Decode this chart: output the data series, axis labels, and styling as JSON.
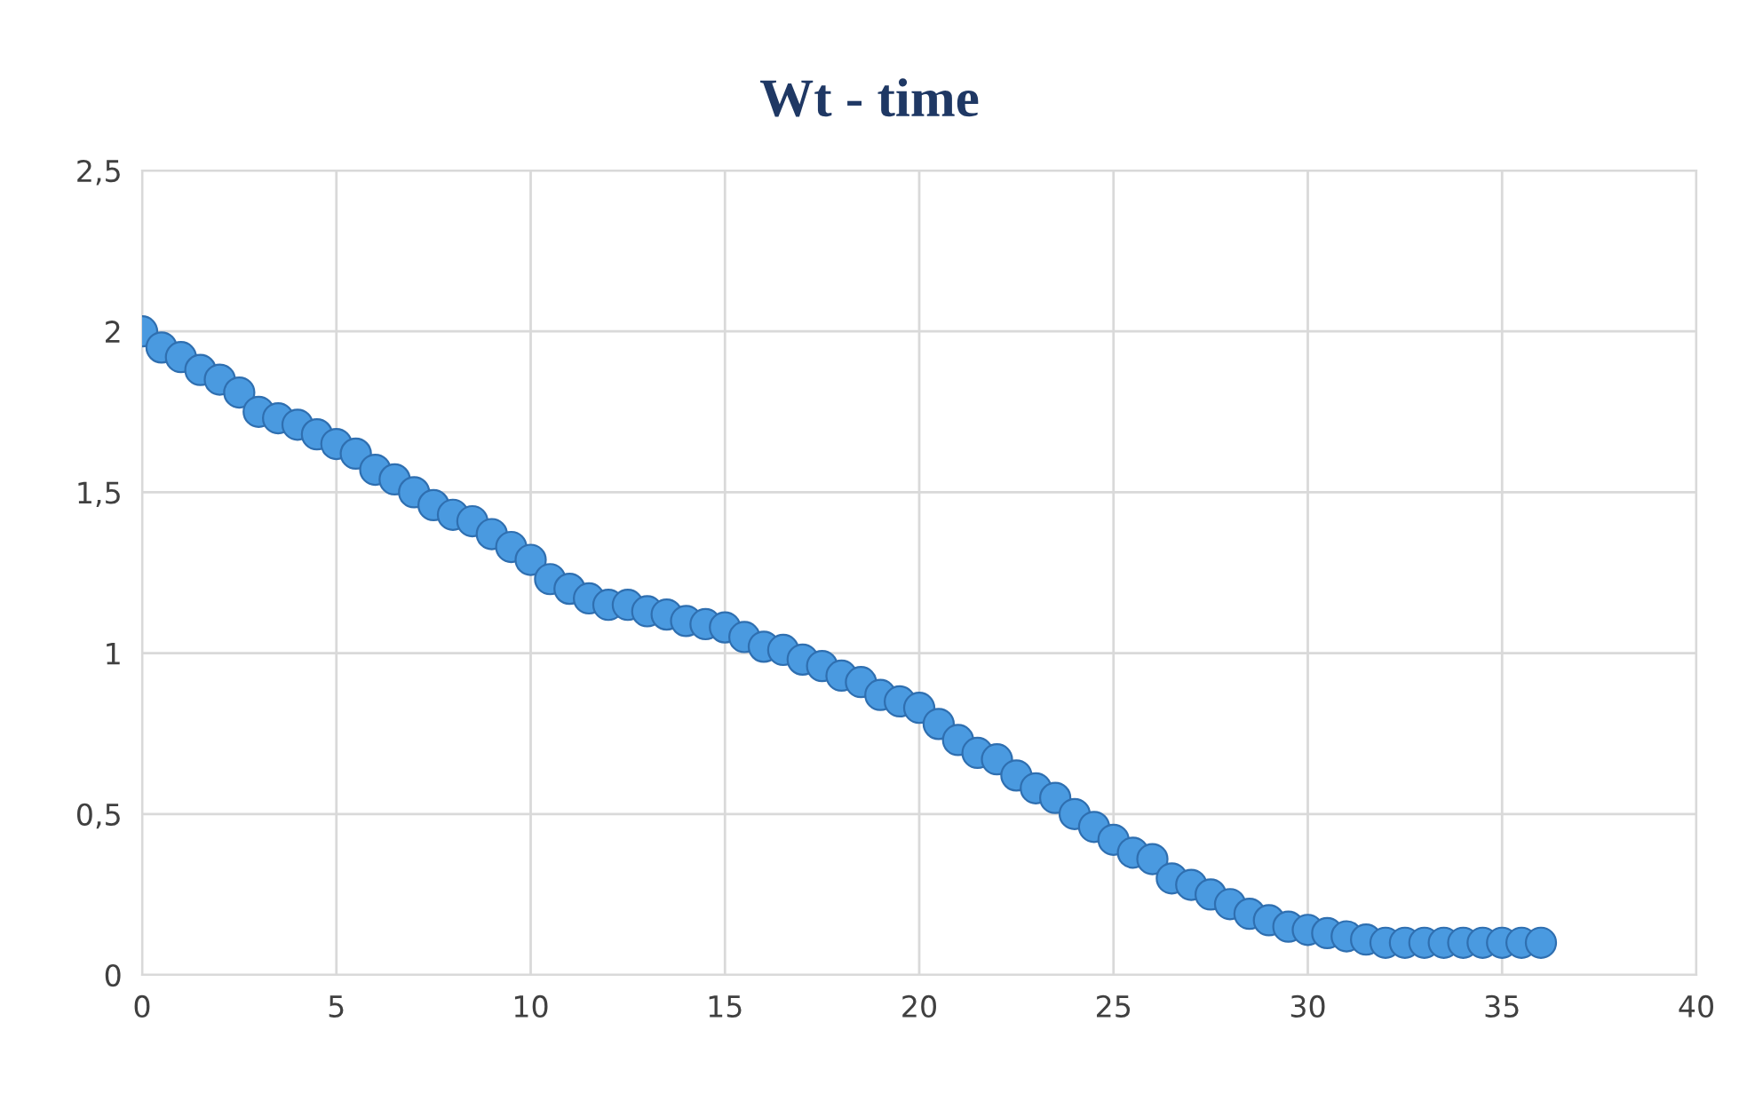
{
  "chart_data": {
    "type": "scatter",
    "title": "Wt - time",
    "x": [
      0,
      0.5,
      1,
      1.5,
      2,
      2.5,
      3,
      3.5,
      4,
      4.5,
      5,
      5.5,
      6,
      6.5,
      7,
      7.5,
      8,
      8.5,
      9,
      9.5,
      10,
      10.5,
      11,
      11.5,
      12,
      12.5,
      13,
      13.5,
      14,
      14.5,
      15,
      15.5,
      16,
      16.5,
      17,
      17.5,
      18,
      18.5,
      19,
      19.5,
      20,
      20.5,
      21,
      21.5,
      22,
      22.5,
      23,
      23.5,
      24,
      24.5,
      25,
      25.5,
      26,
      26.5,
      27,
      27.5,
      28,
      28.5,
      29,
      29.5,
      30,
      30.5,
      31,
      31.5,
      32,
      32.5,
      33,
      33.5,
      34,
      34.5,
      35,
      35.5,
      36
    ],
    "series": [
      {
        "color": "#4a9ae0",
        "values": [
          2.0,
          1.95,
          1.92,
          1.88,
          1.85,
          1.81,
          1.75,
          1.73,
          1.71,
          1.68,
          1.65,
          1.62,
          1.57,
          1.54,
          1.5,
          1.46,
          1.43,
          1.41,
          1.37,
          1.33,
          1.29,
          1.23,
          1.2,
          1.17,
          1.15,
          1.15,
          1.13,
          1.12,
          1.1,
          1.09,
          1.08,
          1.05,
          1.02,
          1.01,
          0.98,
          0.96,
          0.93,
          0.91,
          0.87,
          0.85,
          0.83,
          0.78,
          0.73,
          0.69,
          0.67,
          0.62,
          0.58,
          0.55,
          0.5,
          0.46,
          0.42,
          0.38,
          0.36,
          0.3,
          0.28,
          0.25,
          0.22,
          0.19,
          0.17,
          0.15,
          0.14,
          0.13,
          0.12,
          0.11,
          0.1,
          0.1,
          0.1,
          0.1,
          0.1,
          0.1,
          0.1,
          0.1,
          0.1
        ]
      }
    ],
    "xlim": [
      0,
      40
    ],
    "xticks": [
      0,
      5,
      10,
      15,
      20,
      25,
      30,
      35,
      40
    ],
    "ylim": [
      0,
      2.5
    ],
    "yticks": [
      0,
      {
        "value": 0.5,
        "label": "0,5"
      },
      1,
      {
        "value": 1.5,
        "label": "1,5"
      },
      2,
      {
        "value": 2.5,
        "label": "2,5"
      }
    ],
    "grid": true,
    "marker": "circle"
  }
}
